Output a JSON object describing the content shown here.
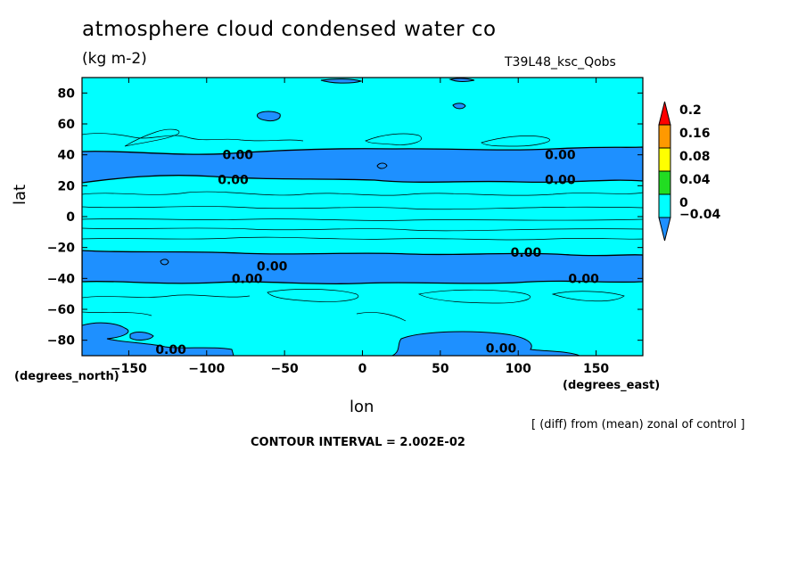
{
  "chart_data": {
    "type": "heatmap",
    "subtype": "filled contour",
    "title": "atmosphere cloud condensed water co",
    "units": "(kg m-2)",
    "run_label": "T39L48_ksc_Qobs",
    "xlabel": "lon",
    "ylabel": "lat",
    "x_units": "(degrees_east)",
    "y_units": "(degrees_north)",
    "xlim": [
      -180,
      180
    ],
    "ylim": [
      -90,
      90
    ],
    "x_ticks": [
      -150,
      -100,
      -50,
      0,
      50,
      100,
      150
    ],
    "y_ticks": [
      -80,
      -60,
      -40,
      -20,
      0,
      20,
      40,
      60,
      80
    ],
    "contour_interval": "CONTOUR INTERVAL = 2.002E-02",
    "note": "[ (diff) from (mean) zonal of control ]",
    "colorbar": {
      "labels": [
        "-0.04",
        "0",
        "0.04",
        "0.08",
        "0.16",
        "0.2"
      ],
      "colors": [
        "#1e90ff",
        "#00ffff",
        "#22dd22",
        "#ffff00",
        "#ff9900",
        "#ff0000"
      ]
    },
    "negative_bands": [
      {
        "lat_min": 22,
        "lat_max": 41,
        "label": "0.00"
      },
      {
        "lat_min": -41,
        "lat_max": -22,
        "label": "0.00"
      }
    ],
    "contour_labels": [
      {
        "lon": -80,
        "lat": 40,
        "text": "0.00"
      },
      {
        "lon": -83,
        "lat": 24,
        "text": "0.00"
      },
      {
        "lon": 127,
        "lat": 40,
        "text": "0.00"
      },
      {
        "lon": 127,
        "lat": 24,
        "text": "0.00"
      },
      {
        "lon": 105,
        "lat": -23,
        "text": "0.00"
      },
      {
        "lon": -58,
        "lat": -32,
        "text": "0.00"
      },
      {
        "lon": -74,
        "lat": -40,
        "text": "0.00"
      },
      {
        "lon": 142,
        "lat": -40,
        "text": "0.00"
      },
      {
        "lon": -123,
        "lat": -86,
        "text": "0.00"
      },
      {
        "lon": 89,
        "lat": -85,
        "text": "0.00"
      }
    ]
  }
}
